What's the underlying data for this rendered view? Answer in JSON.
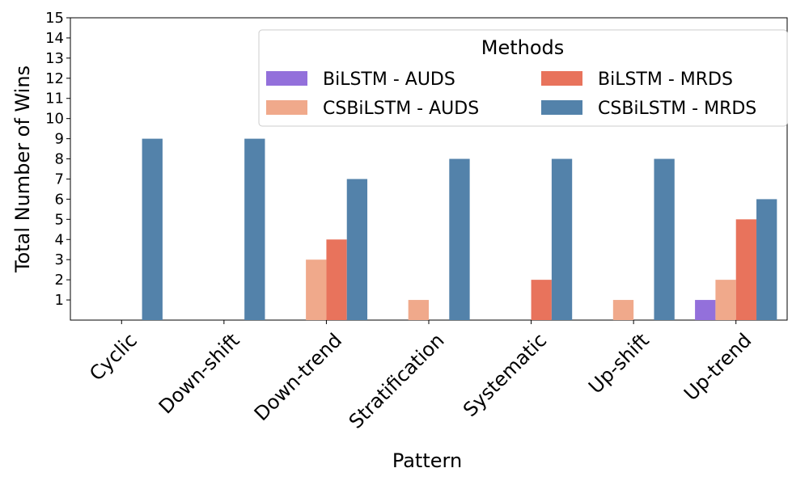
{
  "chart_data": {
    "type": "bar",
    "categories": [
      "Cyclic",
      "Down-shift",
      "Down-trend",
      "Stratification",
      "Systematic",
      "Up-shift",
      "Up-trend"
    ],
    "series": [
      {
        "name": "BiLSTM - AUDS",
        "color": "#9370DB",
        "values": [
          0,
          0,
          0,
          0,
          0,
          0,
          1
        ]
      },
      {
        "name": "CSBiLSTM - AUDS",
        "color": "#F0A98B",
        "values": [
          0,
          0,
          3,
          1,
          0,
          1,
          2
        ]
      },
      {
        "name": "BiLSTM - MRDS",
        "color": "#E8735C",
        "values": [
          0,
          0,
          4,
          0,
          2,
          0,
          5
        ]
      },
      {
        "name": "CSBiLSTM - MRDS",
        "color": "#5382AA",
        "values": [
          9,
          9,
          7,
          8,
          8,
          8,
          6
        ]
      }
    ],
    "xlabel": "Pattern",
    "ylabel": "Total Number of Wins",
    "ylim": [
      0,
      15
    ],
    "yticks": [
      "1",
      "2",
      "3",
      "4",
      "5",
      "6",
      "7",
      "8",
      "9",
      "10",
      "11",
      "12",
      "13",
      "14",
      "15"
    ],
    "legend": {
      "title": "Methods",
      "position": "top-right",
      "columns": 2
    },
    "grid": false
  }
}
